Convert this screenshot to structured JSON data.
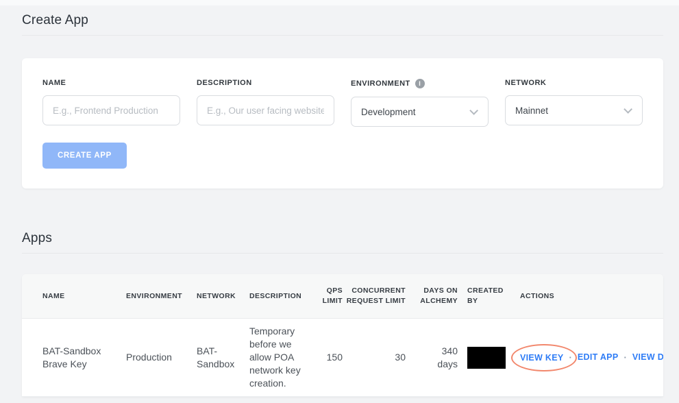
{
  "colors": {
    "page_background": "#f2f3f5",
    "accent_link_blue": "#2e7cf6",
    "create_button_blue": "#90b7f8",
    "annotation_ellipse": "#f2876c",
    "redaction": "#000000"
  },
  "create_app": {
    "title": "Create App",
    "fields": [
      {
        "label": "NAME",
        "placeholder": "E.g., Frontend Production"
      },
      {
        "label": "DESCRIPTION",
        "placeholder": "E.g., Our user facing website"
      },
      {
        "label": "ENVIRONMENT",
        "value": "Development",
        "info_icon": "i"
      },
      {
        "label": "NETWORK",
        "value": "Mainnet"
      }
    ],
    "submit_label": "CREATE APP"
  },
  "apps": {
    "title": "Apps",
    "table": {
      "columns": [
        "NAME",
        "ENVIRONMENT",
        "NETWORK",
        "DESCRIPTION",
        "QPS LIMIT",
        "CONCURRENT REQUEST LIMIT",
        "DAYS ON ALCHEMY",
        "CREATED BY",
        "ACTIONS"
      ],
      "separator": "·",
      "rows": [
        {
          "name": "BAT-Sandbox Brave Key",
          "environment": "Production",
          "network": "BAT-Sandbox",
          "description": "Temporary before we allow POA network key creation.",
          "qps_limit": "150",
          "concurrent_request_limit": "30",
          "days_on_alchemy": "340 days",
          "created_by_redacted": true,
          "actions": [
            {
              "label": "VIEW KEY",
              "annotated": true
            },
            {
              "label": "EDIT APP"
            },
            {
              "label": "VIEW DETAILS"
            }
          ]
        }
      ]
    }
  }
}
